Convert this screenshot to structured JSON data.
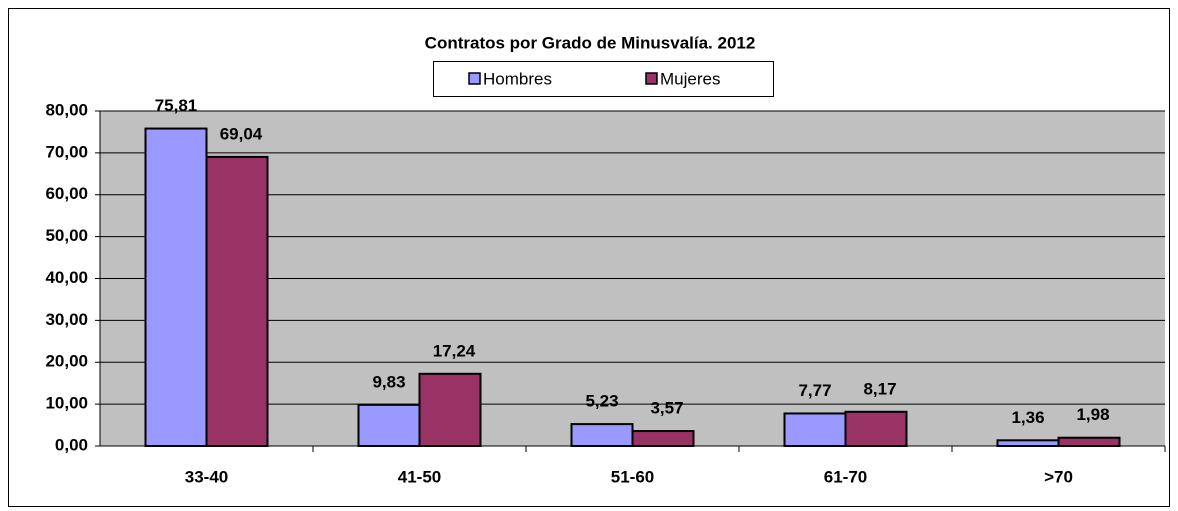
{
  "chart_data": {
    "type": "bar",
    "title": "Contratos por Grado de Minusvalía. 2012",
    "categories": [
      "33-40",
      "41-50",
      "51-60",
      "61-70",
      ">70"
    ],
    "series": [
      {
        "name": "Hombres",
        "color": "#9999ff",
        "values": [
          75.81,
          9.83,
          5.23,
          7.77,
          1.36
        ],
        "value_labels": [
          "75,81",
          "9,83",
          "5,23",
          "7,77",
          "1,36"
        ]
      },
      {
        "name": "Mujeres",
        "color": "#993366",
        "values": [
          69.04,
          17.24,
          3.57,
          8.17,
          1.98
        ],
        "value_labels": [
          "69,04",
          "17,24",
          "3,57",
          "8,17",
          "1,98"
        ]
      }
    ],
    "ylim": [
      0,
      80
    ],
    "yticks": [
      {
        "value": 0,
        "label": "0,00"
      },
      {
        "value": 10,
        "label": "10,00"
      },
      {
        "value": 20,
        "label": "20,00"
      },
      {
        "value": 30,
        "label": "30,00"
      },
      {
        "value": 40,
        "label": "40,00"
      },
      {
        "value": 50,
        "label": "50,00"
      },
      {
        "value": 60,
        "label": "60,00"
      },
      {
        "value": 70,
        "label": "70,00"
      },
      {
        "value": 80,
        "label": "80,00"
      }
    ],
    "grid": true,
    "legend": "top"
  }
}
